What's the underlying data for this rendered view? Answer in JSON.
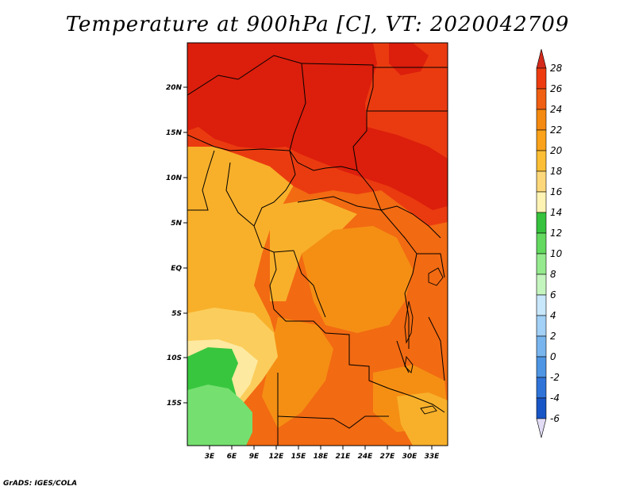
{
  "title": "Temperature at 900hPa [C], VT: 2020042709",
  "credit": "GrADS: IGES/COLA",
  "map": {
    "lat_labels": [
      "20N",
      "15N",
      "10N",
      "5N",
      "EQ",
      "5S",
      "10S",
      "15S"
    ],
    "lon_labels": [
      "3E",
      "6E",
      "9E",
      "12E",
      "15E",
      "18E",
      "21E",
      "24E",
      "27E",
      "30E",
      "33E"
    ]
  },
  "colorbar": {
    "levels": [
      "28",
      "26",
      "24",
      "22",
      "20",
      "18",
      "16",
      "14",
      "12",
      "10",
      "8",
      "6",
      "4",
      "2",
      "0",
      "-2",
      "-4",
      "-6"
    ],
    "colors": [
      "#d9230f",
      "#ee3c10",
      "#f05f12",
      "#f58a10",
      "#f9a21a",
      "#fbbe35",
      "#fcd87a",
      "#fff3b4",
      "#36c23c",
      "#63d95f",
      "#95ea8e",
      "#c5f5bf",
      "#c8e7fb",
      "#a2d0f6",
      "#78b5ee",
      "#4e95e4",
      "#2f73d8",
      "#1855c6",
      "#0b33a0",
      "#0a1a70",
      "#e2dcf5"
    ]
  },
  "field_colors": {
    "c28": "#dc1e0c",
    "c26": "#ea3b10",
    "c24": "#f26a12",
    "c22": "#f58f14",
    "c20": "#f8b02a",
    "c18": "#fbcd5c",
    "c16": "#fde9a0",
    "c14": "#38c63e",
    "c12": "#75e070"
  }
}
